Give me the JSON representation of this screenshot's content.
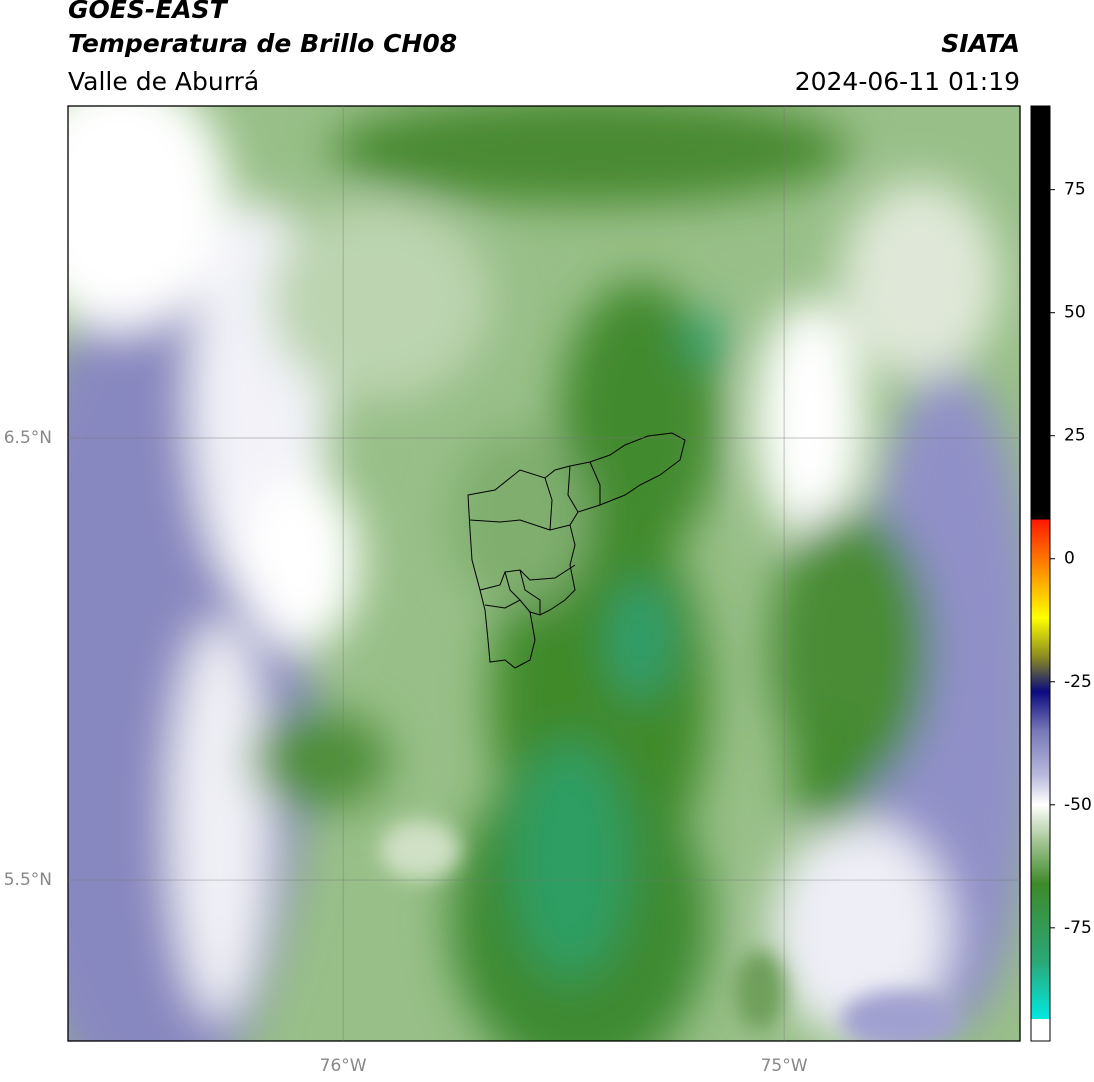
{
  "header": {
    "satellite": "GOES-EAST",
    "product": "Temperatura de Brillo CH08",
    "region": "Valle de Aburrá",
    "agency": "SIATA",
    "datetime": "2024-06-11 01:19"
  },
  "map": {
    "xlim": [
      -76.624,
      -74.465
    ],
    "ylim": [
      5.136,
      7.251
    ],
    "xticks": [
      {
        "value": -76,
        "label": "76°W"
      },
      {
        "value": -75,
        "label": "75°W"
      }
    ],
    "yticks": [
      {
        "value": 5.5,
        "label": "5.5°N"
      },
      {
        "value": 6.5,
        "label": "6.5°N"
      }
    ],
    "grid": true
  },
  "colorbar": {
    "lim": [
      -98,
      92
    ],
    "ticks": [
      -75,
      -50,
      -25,
      0,
      25,
      50,
      75
    ],
    "stops": [
      {
        "value": -98,
        "color": "#ffffff"
      },
      {
        "value": -93.5,
        "color": "#ffffff"
      },
      {
        "value": -93.5,
        "color": "#00e8e0"
      },
      {
        "value": -82,
        "color": "#2aa878"
      },
      {
        "value": -66,
        "color": "#3e8a2a"
      },
      {
        "value": -57,
        "color": "#a9c99a"
      },
      {
        "value": -50,
        "color": "#ffffff"
      },
      {
        "value": -44,
        "color": "#b9b9dc"
      },
      {
        "value": -35,
        "color": "#7878b8"
      },
      {
        "value": -27,
        "color": "#0a0a80"
      },
      {
        "value": -20,
        "color": "#8a8a20"
      },
      {
        "value": -12,
        "color": "#ffff00"
      },
      {
        "value": -3,
        "color": "#ff9800"
      },
      {
        "value": 8,
        "color": "#ff1800"
      },
      {
        "value": 8,
        "color": "#000000"
      },
      {
        "value": 92,
        "color": "#000000"
      }
    ]
  }
}
